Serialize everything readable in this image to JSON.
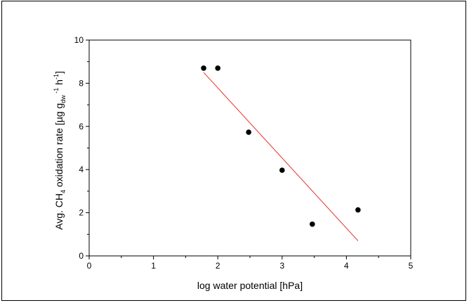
{
  "chart_data": {
    "type": "scatter",
    "xlabel": "log water potential [hPa]",
    "ylabel": {
      "prefix": "Avg. CH",
      "sub1": "4",
      "middle": " oxidation rate [µg g",
      "sub2": "dw",
      "sup1": " -1",
      "middle2": " h",
      "sup2": "-1",
      "suffix": "]"
    },
    "xlim": [
      0,
      5
    ],
    "ylim": [
      0,
      10
    ],
    "x_ticks": [
      "0",
      "1",
      "2",
      "3",
      "4",
      "5"
    ],
    "y_ticks": [
      "0",
      "2",
      "4",
      "6",
      "8",
      "10"
    ],
    "grid": false,
    "series": [
      {
        "points": [
          {
            "x": 1.78,
            "y": 8.7
          },
          {
            "x": 2.0,
            "y": 8.7
          },
          {
            "x": 2.48,
            "y": 5.73
          },
          {
            "x": 3.0,
            "y": 3.97
          },
          {
            "x": 3.47,
            "y": 1.47
          },
          {
            "x": 4.18,
            "y": 2.13
          }
        ],
        "color": "#000000"
      }
    ],
    "fit_line": {
      "x": [
        1.78,
        4.18
      ],
      "y": [
        8.5,
        0.7
      ],
      "color": "#e8322b"
    }
  }
}
